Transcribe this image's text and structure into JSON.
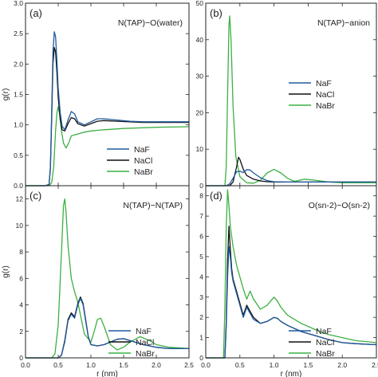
{
  "figure": {
    "ylabel": "g(r)",
    "xlabel": "r (nm)"
  },
  "colors": {
    "NaF": "#1f5a9e",
    "NaCl": "#111111",
    "NaBr": "#3cb043"
  },
  "chart_data": [
    {
      "type": "line",
      "panel": "(a)",
      "title": "N(TAP)−O(water)",
      "xlim": [
        0,
        2.5
      ],
      "ylim": [
        0,
        3.0
      ],
      "xticks": [
        "",
        "",
        "",
        "",
        "",
        ""
      ],
      "yticks": [
        "0.0",
        "0.5",
        "1.0",
        "1.5",
        "2.0",
        "2.5",
        "3.0"
      ],
      "ylabel": "g(r)",
      "xlabel": "",
      "legend": "bottom-right",
      "series": [
        {
          "name": "NaF",
          "color": "#1f5a9e",
          "x": [
            0,
            0.3,
            0.36,
            0.38,
            0.4,
            0.42,
            0.44,
            0.46,
            0.48,
            0.5,
            0.53,
            0.56,
            0.6,
            0.65,
            0.7,
            0.75,
            0.8,
            0.9,
            1.0,
            1.1,
            1.2,
            1.4,
            1.6,
            1.8,
            2.0,
            2.5
          ],
          "y": [
            0,
            0,
            0.02,
            0.3,
            1.2,
            2.2,
            2.53,
            2.45,
            2.05,
            1.6,
            1.2,
            0.98,
            0.92,
            1.08,
            1.22,
            1.18,
            1.05,
            1.0,
            1.05,
            1.1,
            1.1,
            1.08,
            1.06,
            1.05,
            1.05,
            1.05
          ]
        },
        {
          "name": "NaCl",
          "color": "#111111",
          "x": [
            0,
            0.3,
            0.36,
            0.38,
            0.4,
            0.42,
            0.44,
            0.46,
            0.48,
            0.5,
            0.53,
            0.56,
            0.6,
            0.65,
            0.7,
            0.75,
            0.8,
            0.9,
            1.0,
            1.1,
            1.2,
            1.4,
            1.6,
            1.8,
            2.0,
            2.5
          ],
          "y": [
            0,
            0,
            0.02,
            0.28,
            1.1,
            2.0,
            2.27,
            2.2,
            1.85,
            1.45,
            1.1,
            0.92,
            0.9,
            1.02,
            1.12,
            1.1,
            1.02,
            0.98,
            1.02,
            1.06,
            1.07,
            1.06,
            1.05,
            1.04,
            1.04,
            1.04
          ]
        },
        {
          "name": "NaBr",
          "color": "#3cb043",
          "x": [
            0,
            0.36,
            0.4,
            0.43,
            0.46,
            0.48,
            0.5,
            0.52,
            0.55,
            0.58,
            0.62,
            0.66,
            0.7,
            0.8,
            0.9,
            1.0,
            1.2,
            1.5,
            2.0,
            2.5
          ],
          "y": [
            0,
            0,
            0.05,
            0.3,
            0.9,
            1.2,
            1.3,
            1.18,
            0.9,
            0.7,
            0.62,
            0.7,
            0.82,
            0.85,
            0.88,
            0.9,
            0.92,
            0.94,
            0.96,
            0.97
          ]
        }
      ]
    },
    {
      "type": "line",
      "panel": "(b)",
      "title": "N(TAP)−anion",
      "xlim": [
        0,
        2.5
      ],
      "ylim": [
        0,
        50
      ],
      "xticks": [
        "",
        "",
        "",
        "",
        "",
        ""
      ],
      "yticks": [
        "0",
        "10",
        "20",
        "30",
        "40",
        "50"
      ],
      "ylabel": "",
      "xlabel": "",
      "legend": "center-right",
      "series": [
        {
          "name": "NaF",
          "color": "#1f5a9e",
          "x": [
            0,
            0.3,
            0.35,
            0.4,
            0.45,
            0.5,
            0.55,
            0.6,
            0.65,
            0.7,
            0.8,
            0.9,
            1.0,
            1.2,
            1.5,
            2.0,
            2.5
          ],
          "y": [
            0,
            0,
            0.5,
            2.0,
            3.8,
            4.0,
            3.6,
            4.4,
            4.3,
            3.5,
            2.2,
            1.4,
            1.1,
            1.0,
            1.0,
            1.0,
            1.0
          ]
        },
        {
          "name": "NaCl",
          "color": "#111111",
          "x": [
            0,
            0.35,
            0.4,
            0.45,
            0.48,
            0.5,
            0.55,
            0.6,
            0.7,
            0.8,
            0.9,
            1.0,
            1.2,
            1.5,
            2.0,
            2.5
          ],
          "y": [
            0,
            0,
            1.0,
            5.0,
            7.8,
            7.2,
            4.5,
            2.8,
            1.8,
            1.3,
            1.1,
            1.0,
            1.0,
            1.0,
            1.0,
            1.0
          ]
        },
        {
          "name": "NaBr",
          "color": "#3cb043",
          "x": [
            0,
            0.28,
            0.3,
            0.32,
            0.34,
            0.35,
            0.37,
            0.4,
            0.44,
            0.5,
            0.6,
            0.7,
            0.8,
            0.9,
            1.0,
            1.1,
            1.2,
            1.3,
            1.45,
            1.6,
            1.8,
            2.0,
            2.5
          ],
          "y": [
            0,
            0,
            5,
            25,
            44,
            46.5,
            40,
            22,
            8,
            2.5,
            0.8,
            0.7,
            1.5,
            3.5,
            4.5,
            3.5,
            2.0,
            1.2,
            1.8,
            1.5,
            1.0,
            0.8,
            0.8
          ]
        }
      ]
    },
    {
      "type": "line",
      "panel": "(c)",
      "title": "N(TAP)−N(TAP)",
      "xlim": [
        0,
        2.5
      ],
      "ylim": [
        0,
        13
      ],
      "xticks": [
        "0.0",
        "0.5",
        "1.0",
        "1.5",
        "2.0",
        "2.5"
      ],
      "yticks": [
        "0",
        "2",
        "4",
        "6",
        "8",
        "10",
        "12"
      ],
      "ylabel": "g(r)",
      "xlabel": "r (nm)",
      "legend": "right",
      "series": [
        {
          "name": "NaF",
          "color": "#1f5a9e",
          "x": [
            0,
            0.5,
            0.55,
            0.6,
            0.65,
            0.7,
            0.75,
            0.8,
            0.84,
            0.88,
            0.92,
            0.96,
            1.0,
            1.1,
            1.2,
            1.3,
            1.4,
            1.5,
            1.6,
            1.8,
            2.0,
            2.2,
            2.5
          ],
          "y": [
            0,
            0,
            0.2,
            1.2,
            2.8,
            3.3,
            3.0,
            4.0,
            4.5,
            4.0,
            2.8,
            1.6,
            1.0,
            0.9,
            1.0,
            1.2,
            1.4,
            1.45,
            1.3,
            1.0,
            0.8,
            0.7,
            0.7
          ]
        },
        {
          "name": "NaCl",
          "color": "#111111",
          "x": [
            0,
            0.5,
            0.55,
            0.6,
            0.65,
            0.7,
            0.75,
            0.8,
            0.84,
            0.88,
            0.92,
            0.96,
            1.0,
            1.1,
            1.2,
            1.3,
            1.4,
            1.5,
            1.6,
            1.8,
            2.0,
            2.2,
            2.5
          ],
          "y": [
            0,
            0,
            0.2,
            1.3,
            2.9,
            3.4,
            3.1,
            4.1,
            4.6,
            4.1,
            2.9,
            1.6,
            1.0,
            0.9,
            1.0,
            1.2,
            1.4,
            1.45,
            1.3,
            1.0,
            0.8,
            0.7,
            0.7
          ]
        },
        {
          "name": "NaBr",
          "color": "#3cb043",
          "x": [
            0,
            0.4,
            0.45,
            0.5,
            0.55,
            0.58,
            0.6,
            0.62,
            0.65,
            0.7,
            0.75,
            0.8,
            0.9,
            1.0,
            1.05,
            1.1,
            1.15,
            1.2,
            1.3,
            1.4,
            1.5,
            1.6,
            1.75,
            1.9,
            2.0,
            2.2,
            2.5
          ],
          "y": [
            0,
            0,
            0.3,
            2.5,
            8.0,
            11.5,
            12.0,
            11.0,
            8.5,
            6.0,
            5.0,
            4.2,
            1.8,
            1.2,
            2.0,
            2.9,
            3.0,
            2.4,
            1.0,
            0.6,
            0.8,
            1.2,
            1.6,
            1.3,
            1.0,
            0.8,
            0.7
          ]
        }
      ]
    },
    {
      "type": "line",
      "panel": "(d)",
      "title": "O(sn-2)−O(sn-2)",
      "xlim": [
        0,
        2.5
      ],
      "ylim": [
        0,
        8.5
      ],
      "xticks": [
        "0.0",
        "0.5",
        "1.0",
        "1.5",
        "2.0",
        "2.5"
      ],
      "yticks": [
        "0",
        "1",
        "2",
        "3",
        "4",
        "5",
        "6",
        "7",
        "8"
      ],
      "ylabel": "",
      "xlabel": "r (nm)",
      "legend": "right",
      "series": [
        {
          "name": "NaF",
          "color": "#1f5a9e",
          "x": [
            0,
            0.28,
            0.3,
            0.32,
            0.34,
            0.36,
            0.38,
            0.4,
            0.45,
            0.5,
            0.55,
            0.6,
            0.65,
            0.7,
            0.8,
            0.9,
            1.0,
            1.05,
            1.1,
            1.2,
            1.4,
            1.6,
            1.8,
            2.0,
            2.2,
            2.5
          ],
          "y": [
            0,
            0,
            1.5,
            4.0,
            5.5,
            5.0,
            4.2,
            3.8,
            3.2,
            2.6,
            2.0,
            2.5,
            2.2,
            1.9,
            1.7,
            1.8,
            2.0,
            1.95,
            1.8,
            1.6,
            1.3,
            1.1,
            0.9,
            0.75,
            0.7,
            0.65
          ]
        },
        {
          "name": "NaCl",
          "color": "#111111",
          "x": [
            0,
            0.28,
            0.3,
            0.32,
            0.34,
            0.36,
            0.38,
            0.4,
            0.45,
            0.5,
            0.55,
            0.6,
            0.65,
            0.7,
            0.8,
            0.9,
            1.0,
            1.05,
            1.1,
            1.2,
            1.4,
            1.6,
            1.8,
            2.0,
            2.2,
            2.5
          ],
          "y": [
            0,
            0,
            1.8,
            4.8,
            6.5,
            5.4,
            4.4,
            3.9,
            3.3,
            2.7,
            2.1,
            2.6,
            2.3,
            2.0,
            1.7,
            1.8,
            2.0,
            1.95,
            1.8,
            1.6,
            1.3,
            1.1,
            0.9,
            0.75,
            0.7,
            0.65
          ]
        },
        {
          "name": "NaBr",
          "color": "#3cb043",
          "x": [
            0,
            0.26,
            0.28,
            0.3,
            0.32,
            0.34,
            0.36,
            0.38,
            0.4,
            0.45,
            0.5,
            0.55,
            0.6,
            0.65,
            0.7,
            0.8,
            0.9,
            0.95,
            1.0,
            1.05,
            1.1,
            1.2,
            1.4,
            1.6,
            1.8,
            2.0,
            2.2,
            2.5
          ],
          "y": [
            0,
            0,
            2.5,
            6.5,
            8.3,
            7.5,
            6.5,
            6.0,
            5.5,
            4.6,
            4.0,
            3.4,
            2.9,
            3.3,
            2.9,
            2.4,
            2.6,
            2.8,
            3.0,
            2.8,
            2.5,
            2.1,
            1.7,
            1.4,
            1.15,
            1.0,
            0.85,
            0.75
          ]
        }
      ]
    }
  ]
}
